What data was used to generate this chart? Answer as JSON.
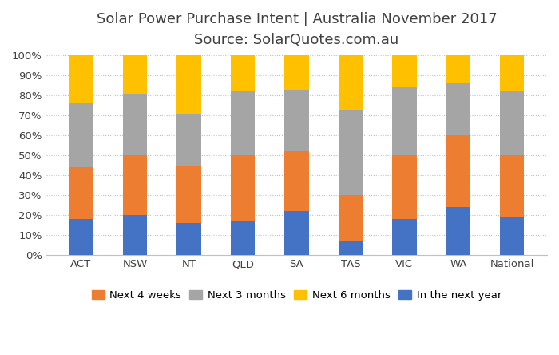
{
  "title_line1": "Solar Power Purchase Intent | Australia November 2017",
  "title_line2": "Source: SolarQuotes.com.au",
  "categories": [
    "ACT",
    "NSW",
    "NT",
    "QLD",
    "SA",
    "TAS",
    "VIC",
    "WA",
    "National"
  ],
  "series": {
    "In the next year": [
      18,
      20,
      16,
      17,
      22,
      7,
      18,
      24,
      19
    ],
    "Next 4 weeks": [
      26,
      30,
      29,
      33,
      30,
      23,
      32,
      36,
      31
    ],
    "Next 3 months": [
      32,
      31,
      26,
      32,
      31,
      43,
      34,
      26,
      32
    ],
    "Next 6 months": [
      24,
      19,
      29,
      18,
      17,
      27,
      16,
      14,
      18
    ]
  },
  "colors": {
    "In the next year": "#4472C4",
    "Next 4 weeks": "#ED7D31",
    "Next 3 months": "#A5A5A5",
    "Next 6 months": "#FFC000"
  },
  "legend_order": [
    "Next 4 weeks",
    "Next 3 months",
    "Next 6 months",
    "In the next year"
  ],
  "bar_width": 0.45,
  "ylim": [
    0,
    100
  ],
  "ytick_labels": [
    "0%",
    "10%",
    "20%",
    "30%",
    "40%",
    "50%",
    "60%",
    "70%",
    "80%",
    "90%",
    "100%"
  ],
  "ytick_values": [
    0,
    10,
    20,
    30,
    40,
    50,
    60,
    70,
    80,
    90,
    100
  ],
  "background_color": "#ffffff",
  "grid_color": "#c0c0c0",
  "title_fontsize": 13,
  "subtitle_fontsize": 12,
  "tick_fontsize": 9.5,
  "legend_fontsize": 9.5,
  "title_color": "#404040",
  "tick_color": "#404040"
}
